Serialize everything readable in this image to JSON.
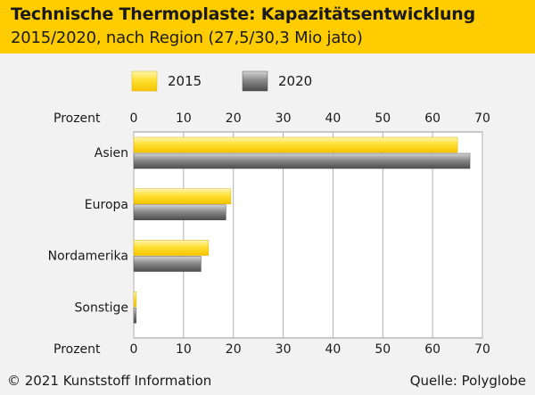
{
  "header": {
    "title": "Technische Thermoplaste: Kapazitätsentwicklung",
    "subtitle": "2015/2020, nach Region (27,5/30,3 Mio jato)"
  },
  "footer": {
    "copyright": "© 2021 Kunststoff Information",
    "source": "Quelle: Polyglobe"
  },
  "colors": {
    "header_bg": "#ffcc00",
    "series_2015": "#ffd21a",
    "series_2015_light": "#fff4a8",
    "series_2020": "#6e6e6e",
    "series_2020_light": "#c8c8c8"
  },
  "chart_data": {
    "type": "bar",
    "orientation": "horizontal",
    "title": "Technische Thermoplaste: Kapazitätsentwicklung",
    "subtitle": "2015/2020, nach Region (27,5/30,3 Mio jato)",
    "xlabel": "Prozent",
    "xlim": [
      0,
      70
    ],
    "xticks": [
      0,
      10,
      20,
      30,
      40,
      50,
      60,
      70
    ],
    "categories": [
      "Asien",
      "Europa",
      "Nordamerika",
      "Sonstige"
    ],
    "series": [
      {
        "name": "2015",
        "values": [
          65,
          19.5,
          15,
          0.5
        ]
      },
      {
        "name": "2020",
        "values": [
          67.5,
          18.5,
          13.5,
          0.5
        ]
      }
    ],
    "legend_position": "top-center",
    "grid": true
  }
}
